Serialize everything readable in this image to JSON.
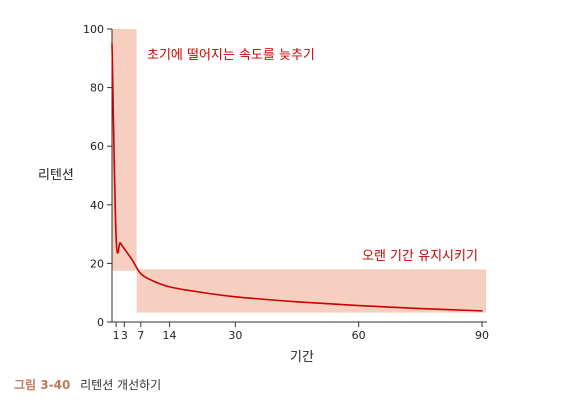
{
  "chart_data": {
    "type": "line",
    "xlabel": "기간",
    "ylabel": "리텐션",
    "xlim": [
      0,
      90
    ],
    "ylim": [
      0,
      100
    ],
    "xticks": [
      1,
      3,
      7,
      14,
      30,
      60,
      90
    ],
    "yticks": [
      0,
      20,
      40,
      60,
      80,
      100
    ],
    "grid": false,
    "series": [
      {
        "color": "#cc0000",
        "x": [
          0,
          1,
          2,
          3,
          5,
          7,
          10,
          14,
          20,
          30,
          45,
          60,
          75,
          90
        ],
        "y": [
          95,
          29,
          27,
          25,
          21,
          16.5,
          14,
          12,
          10.5,
          8.6,
          6.9,
          5.6,
          4.6,
          3.8
        ]
      }
    ],
    "highlight_regions": [
      {
        "x": [
          0,
          6
        ],
        "y": [
          17.5,
          100
        ],
        "color": "#f6cfc0"
      },
      {
        "x": [
          6,
          91
        ],
        "y": [
          3.2,
          18
        ],
        "color": "#f6cfc0"
      }
    ],
    "annotations": [
      {
        "id": "early",
        "text": "초기에 떨어지는 속도를 늦추기",
        "color": "#cc0000"
      },
      {
        "id": "long",
        "text": "오랜 기간 유지시키기",
        "color": "#cc0000"
      }
    ]
  },
  "caption": {
    "figure_label": "그림 3-40",
    "text": "리텐션 개선하기"
  }
}
